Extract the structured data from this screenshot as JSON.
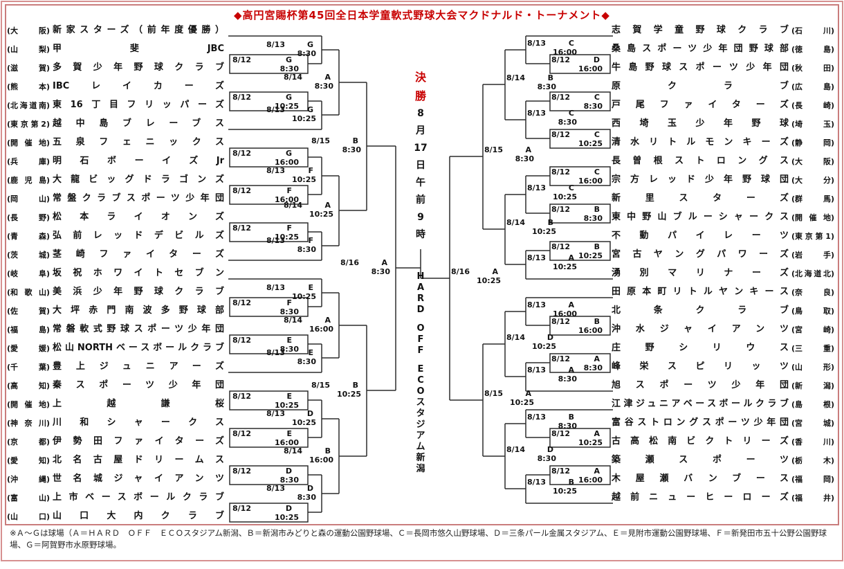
{
  "title": "◆高円宮賜杯第45回全日本学童軟式野球大会マクドナルド・トーナメント◆",
  "final": {
    "label": "決勝",
    "datetime": "8月17日午前9時",
    "venue": "HARD OFF ECOスタジアム新潟"
  },
  "footnote": "※Ａ～Ｇは球場（Ａ＝ＨＡＲＤ　ＯＦＦ　ＥＣＯスタジアム新潟、Ｂ＝新潟市みどりと森の運動公園野球場、Ｃ＝長岡市悠久山野球場、Ｄ＝三条パール金属スタジアム、Ｅ＝見附市運動公園野球場、Ｆ＝新発田市五十公野公園野球場、Ｇ＝阿賀野市水原野球場。",
  "colors": {
    "accent_red": "#c80000",
    "border_pink": "#c97c7c",
    "line_black": "#2b2b2b"
  },
  "left_teams": [
    {
      "pref": "大阪",
      "name": "新家スターズ（前年度優勝）"
    },
    {
      "pref": "山梨",
      "name": "甲斐JBC"
    },
    {
      "pref": "滋賀",
      "name": "多賀少年野球クラブ"
    },
    {
      "pref": "熊本",
      "name": "IBCレイカーズ"
    },
    {
      "pref": "北海道南",
      "name": "東16丁目フリッパーズ"
    },
    {
      "pref": "東京第2",
      "name": "越中島ブレーブス"
    },
    {
      "pref": "開催地",
      "name": "五泉フェニックス"
    },
    {
      "pref": "兵庫",
      "name": "明石ボーイズJr"
    },
    {
      "pref": "鹿児島",
      "name": "大龍ビッグドラゴンズ"
    },
    {
      "pref": "岡山",
      "name": "常盤クラブスポーツ少年団"
    },
    {
      "pref": "長野",
      "name": "松本ライオンズ"
    },
    {
      "pref": "青森",
      "name": "弘前レッドデビルズ"
    },
    {
      "pref": "茨城",
      "name": "茎崎ファイターズ"
    },
    {
      "pref": "岐阜",
      "name": "坂祝ホワイトセブン"
    },
    {
      "pref": "和歌山",
      "name": "美浜少年野球クラブ"
    },
    {
      "pref": "佐賀",
      "name": "大坪赤門南波多野球部"
    },
    {
      "pref": "福島",
      "name": "常磐軟式野球スポーツ少年団"
    },
    {
      "pref": "愛媛",
      "name": "松山NORTHベースボールクラブ"
    },
    {
      "pref": "千葉",
      "name": "豊上ジュニアーズ"
    },
    {
      "pref": "高知",
      "name": "秦スポーツ少年団"
    },
    {
      "pref": "開催地",
      "name": "上越謙桜"
    },
    {
      "pref": "神奈川",
      "name": "川和シャークス"
    },
    {
      "pref": "京都",
      "name": "伊勢田ファイターズ"
    },
    {
      "pref": "愛知",
      "name": "北名古屋ドリームス"
    },
    {
      "pref": "沖縄",
      "name": "世名城ジャイアンツ"
    },
    {
      "pref": "富山",
      "name": "上市ベースボールクラブ"
    },
    {
      "pref": "山口",
      "name": "山口大内クラブ"
    }
  ],
  "right_teams": [
    {
      "pref": "石川",
      "name": "志賀学童野球クラブ"
    },
    {
      "pref": "徳島",
      "name": "桑島スポーツ少年団野球部"
    },
    {
      "pref": "秋田",
      "name": "牛島野球スポーツ少年団"
    },
    {
      "pref": "広島",
      "name": "原クラブ"
    },
    {
      "pref": "長崎",
      "name": "戸尾ファイターズ"
    },
    {
      "pref": "埼玉",
      "name": "西埼玉少年野球"
    },
    {
      "pref": "静岡",
      "name": "清水リトルモンキーズ"
    },
    {
      "pref": "大阪",
      "name": "長曽根ストロングス"
    },
    {
      "pref": "大分",
      "name": "宗方レッド少年野球団"
    },
    {
      "pref": "群馬",
      "name": "新里スターズ"
    },
    {
      "pref": "開催地",
      "name": "東中野山ブルーシャークス"
    },
    {
      "pref": "東京第1",
      "name": "不動パイレーツ"
    },
    {
      "pref": "岩手",
      "name": "宮古ヤングパワーズ"
    },
    {
      "pref": "北海道北",
      "name": "湧別マリナーズ"
    },
    {
      "pref": "奈良",
      "name": "田原本町リトルヤンキース"
    },
    {
      "pref": "鳥取",
      "name": "北条クラブ"
    },
    {
      "pref": "宮崎",
      "name": "沖水ジャイアンツ"
    },
    {
      "pref": "三重",
      "name": "庄野シリウス"
    },
    {
      "pref": "山形",
      "name": "峰栄スピリッツ"
    },
    {
      "pref": "新潟",
      "name": "旭スポーツ少年団"
    },
    {
      "pref": "島根",
      "name": "江津ジュニアベースボールクラブ"
    },
    {
      "pref": "宮城",
      "name": "富谷ストロングスポーツ少年団"
    },
    {
      "pref": "香川",
      "name": "古高松南ビクトリーズ"
    },
    {
      "pref": "栃木",
      "name": "築瀬スポーツ"
    },
    {
      "pref": "福岡",
      "name": "木屋瀬バンブース"
    },
    {
      "pref": "福井",
      "name": "越前ニューヒーローズ"
    }
  ],
  "matches": {
    "L1": {
      "d": "8/12",
      "v": "G",
      "t": "8:30"
    },
    "L2": {
      "d": "8/13",
      "v": "G",
      "t": "8:30"
    },
    "L3": {
      "d": "8/12",
      "v": "G",
      "t": "10:25"
    },
    "L4": {
      "d": "8/13",
      "v": "G",
      "t": "10:25"
    },
    "L5": {
      "d": "8/14",
      "v": "A",
      "t": "8:30"
    },
    "L6": {
      "d": "8/12",
      "v": "G",
      "t": "16:00"
    },
    "L7": {
      "d": "8/13",
      "v": "F",
      "t": "10:25"
    },
    "L8": {
      "d": "8/12",
      "v": "F",
      "t": "16:00"
    },
    "L9": {
      "d": "8/12",
      "v": "F",
      "t": "10:25"
    },
    "L10": {
      "d": "8/13",
      "v": "F",
      "t": "8:30"
    },
    "L11": {
      "d": "8/14",
      "v": "A",
      "t": "10:25"
    },
    "L12": {
      "d": "8/15",
      "v": "B",
      "t": "8:30"
    },
    "L13": {
      "d": "8/12",
      "v": "F",
      "t": "8:30"
    },
    "L14": {
      "d": "8/13",
      "v": "E",
      "t": "10:25"
    },
    "L15": {
      "d": "8/12",
      "v": "E",
      "t": "8:30"
    },
    "L16": {
      "d": "8/13",
      "v": "E",
      "t": "8:30"
    },
    "L17": {
      "d": "8/14",
      "v": "A",
      "t": "16:00"
    },
    "L18": {
      "d": "8/12",
      "v": "E",
      "t": "10:25"
    },
    "L19": {
      "d": "8/12",
      "v": "E",
      "t": "16:00"
    },
    "L20": {
      "d": "8/13",
      "v": "D",
      "t": "10:25"
    },
    "L21": {
      "d": "8/12",
      "v": "D",
      "t": "8:30"
    },
    "L22": {
      "d": "8/12",
      "v": "D",
      "t": "10:25"
    },
    "L23": {
      "d": "8/13",
      "v": "D",
      "t": "8:30"
    },
    "L24": {
      "d": "8/14",
      "v": "B",
      "t": "16:00"
    },
    "L25": {
      "d": "8/15",
      "v": "B",
      "t": "10:25"
    },
    "L26": {
      "d": "8/16",
      "v": "A",
      "t": "8:30"
    },
    "R1": {
      "d": "8/12",
      "v": "D",
      "t": "16:00"
    },
    "R2": {
      "d": "8/13",
      "v": "C",
      "t": "16:00"
    },
    "R3": {
      "d": "8/12",
      "v": "C",
      "t": "8:30"
    },
    "R4": {
      "d": "8/12",
      "v": "C",
      "t": "10:25"
    },
    "R5": {
      "d": "8/13",
      "v": "C",
      "t": "8:30"
    },
    "R6": {
      "d": "8/14",
      "v": "B",
      "t": "8:30"
    },
    "R7": {
      "d": "8/12",
      "v": "C",
      "t": "16:00"
    },
    "R8": {
      "d": "8/12",
      "v": "B",
      "t": "8:30"
    },
    "R9": {
      "d": "8/13",
      "v": "C",
      "t": "10:25"
    },
    "R10": {
      "d": "8/12",
      "v": "B",
      "t": "10:25"
    },
    "R11": {
      "d": "8/13",
      "v": "A",
      "t": "10:25"
    },
    "R12": {
      "d": "8/14",
      "v": "B",
      "t": "10:25"
    },
    "R13": {
      "d": "8/15",
      "v": "A",
      "t": "8:30"
    },
    "R14": {
      "d": "8/12",
      "v": "B",
      "t": "16:00"
    },
    "R15": {
      "d": "8/13",
      "v": "A",
      "t": "16:00"
    },
    "R16": {
      "d": "8/12",
      "v": "A",
      "t": "8:30"
    },
    "R17": {
      "d": "8/13",
      "v": "A",
      "t": "8:30"
    },
    "R18": {
      "d": "8/14",
      "v": "D",
      "t": "10:25"
    },
    "R19": {
      "d": "8/12",
      "v": "A",
      "t": "10:25"
    },
    "R20": {
      "d": "8/13",
      "v": "B",
      "t": "8:30"
    },
    "R21": {
      "d": "8/12",
      "v": "A",
      "t": "16:00"
    },
    "R22": {
      "d": "8/13",
      "v": "B",
      "t": "10:25"
    },
    "R23": {
      "d": "8/14",
      "v": "D",
      "t": "8:30"
    },
    "R24": {
      "d": "8/15",
      "v": "A",
      "t": "10:25"
    },
    "R25": {
      "d": "8/16",
      "v": "A",
      "t": "10:25"
    }
  }
}
